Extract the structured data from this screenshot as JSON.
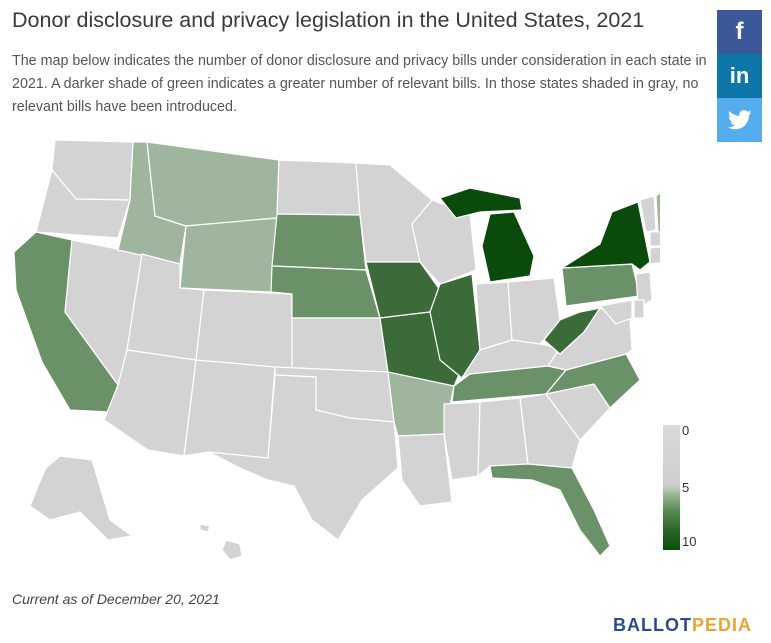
{
  "title": "Donor disclosure and privacy legislation in the United States, 2021",
  "subtitle": "The map below indicates the number of donor disclosure and privacy bills under consideration in each state in 2021. A darker shade of green indicates a greater number of relevant bills. In those states shaded in gray, no relevant bills have been introduced.",
  "share": {
    "facebook": "f",
    "linkedin": "in",
    "twitter": "twitter-icon"
  },
  "legend": {
    "min": "0",
    "mid": "5",
    "max": "10"
  },
  "footnote": "Current as of December 20, 2021",
  "brand": {
    "part1": "BALLOT",
    "part2": "PEDIA",
    "color1": "#2b4c8c",
    "color2": "#e8a531"
  },
  "colors": {
    "none": "#d3d3d3",
    "light": "#9fb59d",
    "medium": "#6b9168",
    "dark": "#3b6b38",
    "darkest": "#0a4a0a"
  },
  "map": {
    "type": "choropleth",
    "region": "United States",
    "states_shaded": [
      {
        "state": "Washington",
        "level": "none"
      },
      {
        "state": "Oregon",
        "level": "none"
      },
      {
        "state": "California",
        "level": "medium"
      },
      {
        "state": "Nevada",
        "level": "none"
      },
      {
        "state": "Idaho",
        "level": "light"
      },
      {
        "state": "Montana",
        "level": "light"
      },
      {
        "state": "Wyoming",
        "level": "light"
      },
      {
        "state": "Utah",
        "level": "none"
      },
      {
        "state": "Arizona",
        "level": "none"
      },
      {
        "state": "Colorado",
        "level": "none"
      },
      {
        "state": "New Mexico",
        "level": "none"
      },
      {
        "state": "North Dakota",
        "level": "none"
      },
      {
        "state": "South Dakota",
        "level": "medium"
      },
      {
        "state": "Nebraska",
        "level": "medium"
      },
      {
        "state": "Kansas",
        "level": "none"
      },
      {
        "state": "Oklahoma",
        "level": "none"
      },
      {
        "state": "Texas",
        "level": "none"
      },
      {
        "state": "Minnesota",
        "level": "none"
      },
      {
        "state": "Iowa",
        "level": "dark"
      },
      {
        "state": "Missouri",
        "level": "dark"
      },
      {
        "state": "Arkansas",
        "level": "light"
      },
      {
        "state": "Louisiana",
        "level": "none"
      },
      {
        "state": "Wisconsin",
        "level": "none"
      },
      {
        "state": "Illinois",
        "level": "dark"
      },
      {
        "state": "Michigan",
        "level": "darkest"
      },
      {
        "state": "Indiana",
        "level": "none"
      },
      {
        "state": "Ohio",
        "level": "none"
      },
      {
        "state": "Kentucky",
        "level": "none"
      },
      {
        "state": "Tennessee",
        "level": "medium"
      },
      {
        "state": "Mississippi",
        "level": "none"
      },
      {
        "state": "Alabama",
        "level": "none"
      },
      {
        "state": "Georgia",
        "level": "none"
      },
      {
        "state": "Florida",
        "level": "medium"
      },
      {
        "state": "South Carolina",
        "level": "none"
      },
      {
        "state": "North Carolina",
        "level": "medium"
      },
      {
        "state": "Virginia",
        "level": "none"
      },
      {
        "state": "West Virginia",
        "level": "dark"
      },
      {
        "state": "Pennsylvania",
        "level": "medium"
      },
      {
        "state": "New York",
        "level": "darkest"
      },
      {
        "state": "New Jersey",
        "level": "none"
      },
      {
        "state": "Maryland",
        "level": "none"
      },
      {
        "state": "Delaware",
        "level": "none"
      },
      {
        "state": "Connecticut",
        "level": "none"
      },
      {
        "state": "Rhode Island",
        "level": "medium"
      },
      {
        "state": "Massachusetts",
        "level": "none"
      },
      {
        "state": "Vermont",
        "level": "none"
      },
      {
        "state": "New Hampshire",
        "level": "light"
      },
      {
        "state": "Maine",
        "level": "medium"
      },
      {
        "state": "Alaska",
        "level": "none"
      },
      {
        "state": "Hawaii",
        "level": "none"
      }
    ]
  }
}
